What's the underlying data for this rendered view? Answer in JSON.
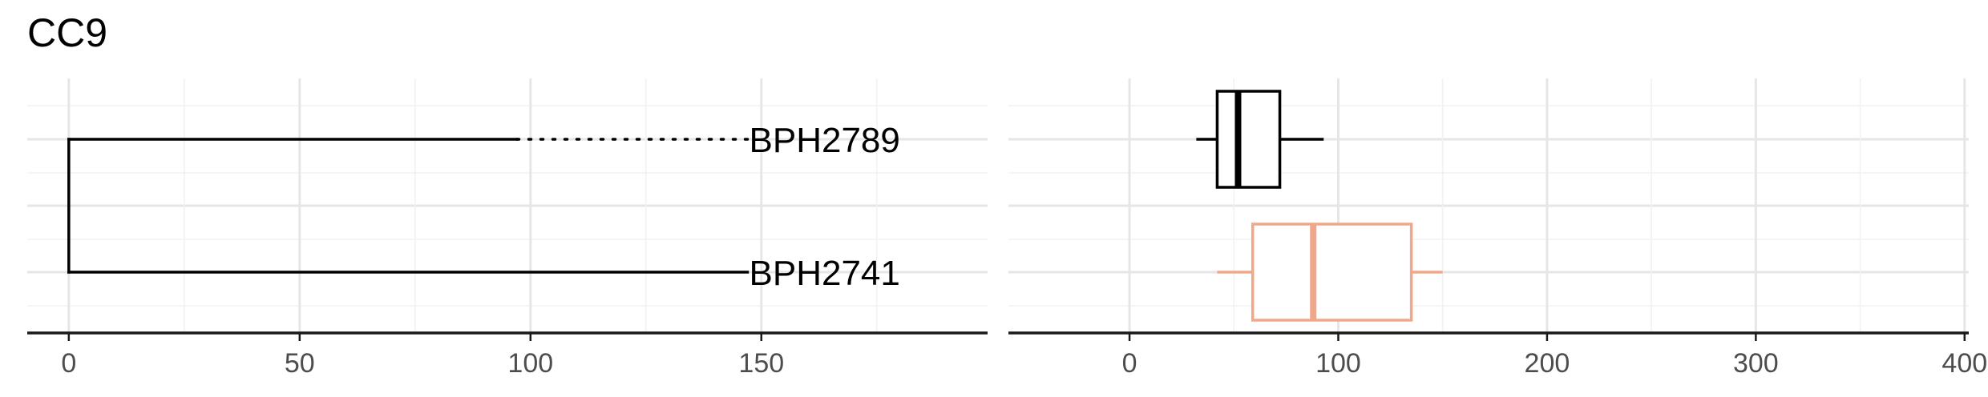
{
  "title": "CC9",
  "colors": {
    "background": "#ffffff",
    "grid_major": "#e6e6e6",
    "grid_minor": "#f2f2f2",
    "axis": "#1a1a1a",
    "tick_text": "#4d4d4d",
    "text": "#000000",
    "box_dark": "#000000",
    "box_salmon": "#f0a88a"
  },
  "chart_data": [
    {
      "type": "tree",
      "title": "CC9",
      "xlabel": "",
      "ylabel": "",
      "xlim": [
        -9,
        199
      ],
      "x_ticks": [
        0,
        50,
        100,
        150
      ],
      "x_minor_ticks": [
        25,
        75,
        125,
        175
      ],
      "grid": true,
      "root": {
        "x": 0
      },
      "tips": [
        {
          "label": "BPH2789",
          "branch_end": 97,
          "tip_x": 147,
          "dotted_extension": true,
          "row": 2
        },
        {
          "label": "BPH2741",
          "branch_end": 147,
          "tip_x": 147,
          "dotted_extension": false,
          "row": 1
        }
      ]
    },
    {
      "type": "boxplot",
      "xlabel": "",
      "ylabel": "",
      "xlim": [
        -58,
        402
      ],
      "x_ticks": [
        0,
        100,
        200,
        300,
        400
      ],
      "x_minor_ticks": [
        50,
        150,
        250,
        350
      ],
      "grid": true,
      "series": [
        {
          "row": 2,
          "color_key": "box_dark",
          "whisker_low": 32,
          "q1": 42,
          "median": 52,
          "q3": 72,
          "whisker_high": 93
        },
        {
          "row": 1,
          "color_key": "box_salmon",
          "whisker_low": 42,
          "q1": 59,
          "median": 88,
          "q3": 135,
          "whisker_high": 150
        }
      ]
    }
  ]
}
